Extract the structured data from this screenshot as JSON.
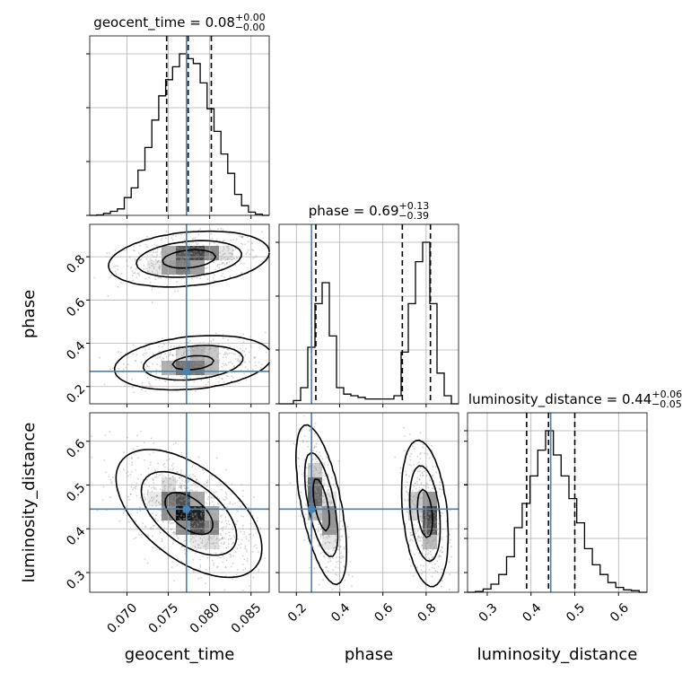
{
  "chart_data": {
    "type": "corner",
    "parameters": [
      {
        "name": "geocent_time",
        "axis_label": "geocent_time",
        "title": "geocent_time = 0.08",
        "title_upper": "+0.00",
        "title_lower": "−0.00",
        "range": [
          0.0655,
          0.0872
        ],
        "ticks": [
          0.07,
          0.075,
          0.08,
          0.085
        ],
        "tick_labels": [
          "0.070",
          "0.075",
          "0.080",
          "0.085"
        ],
        "injection": 0.0772,
        "median": 0.0774,
        "quantiles": [
          0.0748,
          0.0802
        ],
        "hist": [
          0.0,
          0.003,
          0.012,
          0.025,
          0.04,
          0.11,
          0.17,
          0.28,
          0.42,
          0.59,
          0.74,
          0.84,
          0.92,
          1.0,
          0.97,
          0.94,
          0.82,
          0.66,
          0.52,
          0.38,
          0.26,
          0.13,
          0.06,
          0.02,
          0.008,
          0.0
        ]
      },
      {
        "name": "phase",
        "axis_label": "phase",
        "title": "phase = 0.69",
        "title_upper": "+0.13",
        "title_lower": "−0.39",
        "range": [
          0.12,
          0.95
        ],
        "ticks": [
          0.2,
          0.4,
          0.6,
          0.8
        ],
        "tick_labels": [
          "0.2",
          "0.4",
          "0.6",
          "0.8"
        ],
        "injection": 0.27,
        "median": 0.69,
        "quantiles": [
          0.29,
          0.82
        ],
        "hist": [
          0.0,
          0.0,
          0.02,
          0.1,
          0.35,
          0.62,
          0.75,
          0.42,
          0.1,
          0.06,
          0.05,
          0.04,
          0.03,
          0.03,
          0.03,
          0.03,
          0.05,
          0.32,
          0.62,
          0.88,
          1.0,
          0.62,
          0.19,
          0.05,
          0.0
        ]
      },
      {
        "name": "luminosity_distance",
        "axis_label": "luminosity_distance",
        "title": "luminosity_distance = 0.44",
        "title_upper": "+0.06",
        "title_lower": "−0.05",
        "range": [
          0.255,
          0.665
        ],
        "ticks": [
          0.3,
          0.4,
          0.5,
          0.6
        ],
        "tick_labels": [
          "0.3",
          "0.4",
          "0.5",
          "0.6"
        ],
        "injection": 0.445,
        "median": 0.44,
        "quantiles": [
          0.39,
          0.5
        ],
        "hist": [
          0.0,
          0.005,
          0.02,
          0.05,
          0.11,
          0.22,
          0.4,
          0.55,
          0.72,
          0.88,
          1.0,
          0.85,
          0.72,
          0.58,
          0.43,
          0.27,
          0.17,
          0.11,
          0.06,
          0.03,
          0.015,
          0.01,
          0.0
        ]
      }
    ],
    "pairs": [
      {
        "x": "geocent_time",
        "y": "phase",
        "injection": [
          0.0772,
          0.27
        ],
        "modes": [
          {
            "cx": 0.0775,
            "cy": 0.79,
            "sx": 0.0032,
            "sy": 0.042,
            "rho": 0.25,
            "weight": 0.55
          },
          {
            "cx": 0.078,
            "cy": 0.31,
            "sx": 0.0032,
            "sy": 0.042,
            "rho": 0.25,
            "weight": 0.45
          }
        ]
      },
      {
        "x": "geocent_time",
        "y": "luminosity_distance",
        "injection": [
          0.0772,
          0.445
        ],
        "modes": [
          {
            "cx": 0.0775,
            "cy": 0.435,
            "sx": 0.0029,
            "sy": 0.048,
            "rho": -0.55,
            "weight": 1.0
          }
        ]
      },
      {
        "x": "phase",
        "y": "luminosity_distance",
        "injection": [
          0.27,
          0.445
        ],
        "modes": [
          {
            "cx": 0.315,
            "cy": 0.455,
            "sx": 0.038,
            "sy": 0.06,
            "rho": -0.6,
            "weight": 0.5
          },
          {
            "cx": 0.795,
            "cy": 0.435,
            "sx": 0.035,
            "sy": 0.055,
            "rho": -0.3,
            "weight": 0.5
          }
        ]
      }
    ],
    "contour_levels": [
      0.39,
      0.86,
      0.99
    ],
    "colors": {
      "hist": "#000000",
      "injection": "#4682b4",
      "grid": "#b0b0b0",
      "scatter": "#9a9a9a",
      "contour": "#000000"
    },
    "grid": true
  }
}
